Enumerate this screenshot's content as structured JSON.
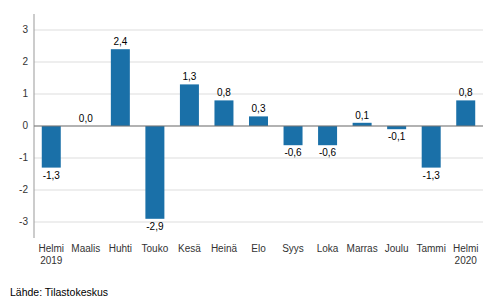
{
  "chart_data": {
    "type": "bar",
    "categories": [
      "Helmi\n2019",
      "Maalis",
      "Huhti",
      "Touko",
      "Kesä",
      "Heinä",
      "Elo",
      "Syys",
      "Loka",
      "Marras",
      "Joulu",
      "Tammi",
      "Helmi\n2020"
    ],
    "values": [
      -1.3,
      0.0,
      2.4,
      -2.9,
      1.3,
      0.8,
      0.3,
      -0.6,
      -0.6,
      0.1,
      -0.1,
      -1.3,
      0.8
    ],
    "value_labels": [
      "-1,3",
      "0,0",
      "2,4",
      "-2,9",
      "1,3",
      "0,8",
      "0,3",
      "-0,6",
      "-0,6",
      "0,1",
      "-0,1",
      "-1,3",
      "0,8"
    ],
    "color": "#1a70a8",
    "ylim": [
      -3.5,
      3.5
    ],
    "yticks": [
      -3,
      -2,
      -1,
      0,
      1,
      2,
      3
    ],
    "grid": true,
    "data_labels": true,
    "annotations": [
      "Lähde: Tilastokeskus"
    ]
  }
}
